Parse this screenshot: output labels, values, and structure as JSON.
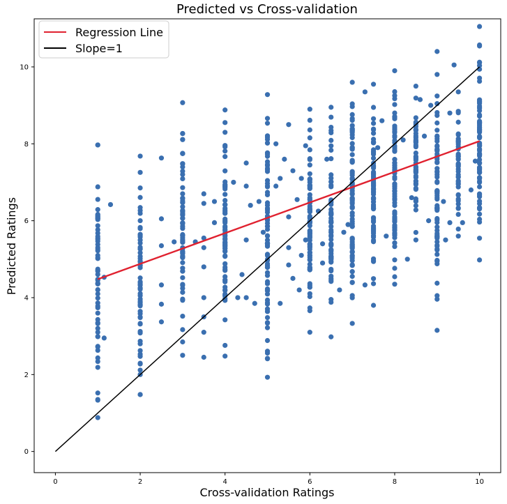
{
  "chart_data": {
    "type": "scatter",
    "title": "Predicted vs Cross-validation",
    "xlabel": "Cross-validation Ratings",
    "ylabel": "Predicted Ratings",
    "xlim": [
      -0.5,
      10.5
    ],
    "ylim": [
      -0.55,
      11.25
    ],
    "x_ticks": [
      0,
      2,
      4,
      6,
      8,
      10
    ],
    "y_ticks": [
      0,
      2,
      4,
      6,
      8,
      10
    ],
    "grid": false,
    "legend_position": "top-left",
    "colors": {
      "points": "#3a6fb0",
      "regression": "#e0212f",
      "slope_one": "#000000"
    },
    "lines": [
      {
        "name": "Regression Line",
        "x": [
          1,
          10
        ],
        "y": [
          4.48,
          8.07
        ],
        "color": "#e0212f"
      },
      {
        "name": "Slope=1",
        "x": [
          0,
          10
        ],
        "y": [
          0,
          10
        ],
        "color": "#000000"
      }
    ],
    "columns": [
      {
        "x": 1.0,
        "y_min": 0.88,
        "y_max": 7.97,
        "n": 60
      },
      {
        "x": 2.0,
        "y_min": 1.48,
        "y_max": 7.68,
        "n": 60
      },
      {
        "x": 3.0,
        "y_min": 2.5,
        "y_max": 9.07,
        "n": 70
      },
      {
        "x": 4.0,
        "y_min": 2.48,
        "y_max": 8.88,
        "n": 70
      },
      {
        "x": 5.0,
        "y_min": 1.93,
        "y_max": 9.28,
        "n": 80
      },
      {
        "x": 6.0,
        "y_min": 3.1,
        "y_max": 8.9,
        "n": 80
      },
      {
        "x": 6.5,
        "y_min": 2.98,
        "y_max": 8.95,
        "n": 70
      },
      {
        "x": 7.0,
        "y_min": 3.33,
        "y_max": 9.6,
        "n": 90
      },
      {
        "x": 7.5,
        "y_min": 3.8,
        "y_max": 9.55,
        "n": 80
      },
      {
        "x": 8.0,
        "y_min": 4.35,
        "y_max": 9.9,
        "n": 80
      },
      {
        "x": 8.5,
        "y_min": 5.5,
        "y_max": 9.5,
        "n": 50
      },
      {
        "x": 9.0,
        "y_min": 3.15,
        "y_max": 10.4,
        "n": 70
      },
      {
        "x": 9.5,
        "y_min": 5.6,
        "y_max": 9.35,
        "n": 45
      },
      {
        "x": 10.0,
        "y_min": 4.98,
        "y_max": 11.05,
        "n": 80
      }
    ],
    "scattered_points": [
      [
        1.15,
        2.95
      ],
      [
        1.15,
        4.53
      ],
      [
        1.3,
        6.42
      ],
      [
        1.0,
        7.97
      ],
      [
        2.0,
        1.48
      ],
      [
        2.0,
        2.0
      ],
      [
        2.5,
        7.63
      ],
      [
        2.5,
        6.05
      ],
      [
        2.5,
        5.35
      ],
      [
        2.5,
        4.33
      ],
      [
        2.5,
        3.83
      ],
      [
        2.5,
        3.37
      ],
      [
        2.8,
        5.45
      ],
      [
        3.3,
        5.45
      ],
      [
        3.5,
        6.7
      ],
      [
        3.5,
        6.45
      ],
      [
        3.5,
        5.55
      ],
      [
        3.5,
        5.3
      ],
      [
        3.5,
        4.8
      ],
      [
        3.5,
        4.0
      ],
      [
        3.5,
        3.5
      ],
      [
        3.5,
        3.1
      ],
      [
        3.5,
        2.45
      ],
      [
        3.75,
        6.5
      ],
      [
        3.75,
        5.95
      ],
      [
        4.2,
        7.0
      ],
      [
        4.3,
        4.0
      ],
      [
        4.4,
        4.6
      ],
      [
        4.5,
        7.5
      ],
      [
        4.5,
        6.9
      ],
      [
        4.5,
        5.5
      ],
      [
        4.5,
        4.0
      ],
      [
        4.6,
        6.4
      ],
      [
        4.7,
        3.85
      ],
      [
        4.8,
        6.5
      ],
      [
        4.9,
        5.7
      ],
      [
        5.2,
        8.0
      ],
      [
        5.2,
        6.9
      ],
      [
        5.3,
        3.85
      ],
      [
        5.3,
        7.1
      ],
      [
        5.4,
        7.6
      ],
      [
        5.5,
        4.85
      ],
      [
        5.5,
        8.5
      ],
      [
        5.5,
        6.1
      ],
      [
        5.5,
        5.3
      ],
      [
        5.6,
        7.3
      ],
      [
        5.6,
        4.5
      ],
      [
        5.7,
        6.55
      ],
      [
        5.75,
        4.2
      ],
      [
        5.8,
        7.1
      ],
      [
        5.8,
        5.1
      ],
      [
        5.9,
        5.5
      ],
      [
        5.9,
        7.95
      ],
      [
        6.2,
        6.25
      ],
      [
        6.3,
        4.9
      ],
      [
        6.3,
        5.4
      ],
      [
        6.4,
        7.6
      ],
      [
        6.7,
        4.2
      ],
      [
        6.8,
        5.7
      ],
      [
        6.9,
        5.9
      ],
      [
        7.3,
        4.33
      ],
      [
        7.3,
        9.35
      ],
      [
        7.6,
        7.9
      ],
      [
        7.7,
        8.6
      ],
      [
        7.8,
        5.6
      ],
      [
        8.2,
        8.1
      ],
      [
        8.3,
        5.0
      ],
      [
        8.6,
        9.15
      ],
      [
        8.7,
        8.2
      ],
      [
        8.8,
        6.0
      ],
      [
        9.2,
        5.5
      ],
      [
        9.3,
        5.95
      ],
      [
        9.4,
        10.05
      ],
      [
        9.6,
        5.95
      ],
      [
        9.8,
        6.8
      ],
      [
        9.9,
        7.55
      ],
      [
        9.3,
        8.8
      ],
      [
        9.15,
        6.5
      ],
      [
        8.85,
        9.0
      ],
      [
        8.4,
        6.6
      ]
    ]
  }
}
